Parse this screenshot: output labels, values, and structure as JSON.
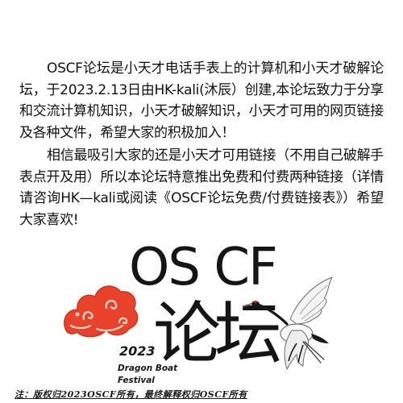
{
  "intro": {
    "paragraph_1": "OSCF论坛是小天才电话手表上的计算机和小天才破解论坛，于2023.2.13日由HK-kali(沐辰）创建,本论坛致力于分享和交流计算机知识，小天才破解知识，小天才可用的网页链接及各种文件，希望大家的积极加入！",
    "paragraph_2": "相信最吸引大家的还是小天才可用链接（不用自己破解手表点开及用）所以本论坛特意推出免费和付费两种链接（详情请咨询HK—kali或阅读《OSCF论坛免费/付费链接表》）希望大家喜欢!"
  },
  "title": {
    "brand": "OS CF",
    "subtitle": "论坛"
  },
  "event": {
    "year": "2023",
    "name": "Dragon Boat Festival"
  },
  "footer": {
    "note": "注：版权归2023OSCF所有，最终解释权归OSCF所有"
  },
  "icons": {
    "cloud": "auspicious-cloud-icon",
    "crane": "red-crowned-crane-icon"
  },
  "colors": {
    "cloud": "#e8432a",
    "cloud_dark": "#c62a18",
    "crane_red": "#d42a1c",
    "text": "#111111"
  }
}
